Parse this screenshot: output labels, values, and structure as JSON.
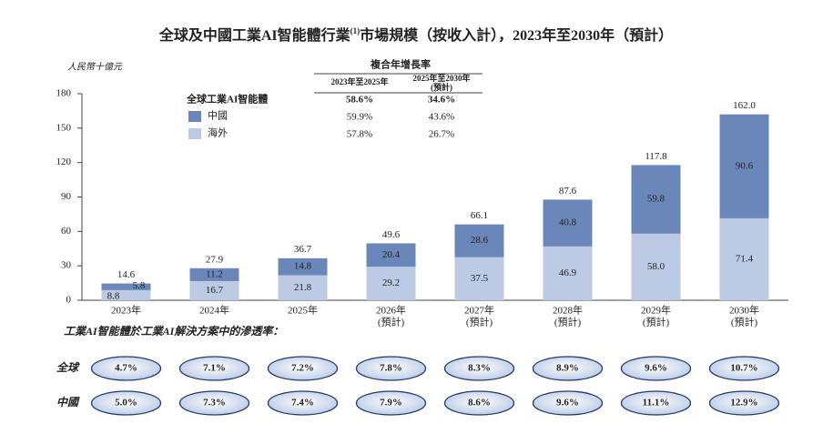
{
  "chart_data": {
    "type": "stacked-bar",
    "title": "全球及中國工業AI智能體行業",
    "title_superscript": "(1)",
    "title_tail": "市場規模（按收入計），2023年至2030年（預計）",
    "y_unit": "人民幣十億元",
    "categories": [
      "2023年",
      "2024年",
      "2025年",
      "2026年",
      "2027年",
      "2028年",
      "2029年",
      "2030年"
    ],
    "category_notes": [
      null,
      null,
      null,
      "(預計)",
      "(預計)",
      "(預計)",
      "(預計)",
      "(預計)"
    ],
    "legend_title": "全球工業AI智能體",
    "series": [
      {
        "name": "海外",
        "color": "#bccbe3",
        "values": [
          8.8,
          16.7,
          21.8,
          29.2,
          37.5,
          46.9,
          58.0,
          71.4
        ],
        "value_labels": [
          "8.8",
          "16.7",
          "21.8",
          "29.2",
          "37.5",
          "46.9",
          "58.0",
          "71.4"
        ]
      },
      {
        "name": "中國",
        "color": "#6b87b9",
        "values": [
          5.8,
          11.2,
          14.8,
          20.4,
          28.6,
          40.8,
          59.8,
          90.6
        ],
        "value_labels": [
          "5.8",
          "11.2",
          "14.8",
          "20.4",
          "28.6",
          "40.8",
          "59.8",
          "90.6"
        ]
      }
    ],
    "totals": [
      14.6,
      27.9,
      36.7,
      49.6,
      66.1,
      87.6,
      117.8,
      162.0
    ],
    "total_labels": [
      "14.6",
      "27.9",
      "36.7",
      "49.6",
      "66.1",
      "87.6",
      "117.8",
      "162.0"
    ],
    "ylim": [
      0,
      180
    ],
    "yticks": [
      0,
      30,
      60,
      90,
      120,
      150,
      180
    ]
  },
  "cagr_table": {
    "title": "複合年增長率",
    "columns": [
      "2023年至2025年",
      "2025年至2030年"
    ],
    "column_note": "(預計)",
    "rows": [
      [
        "58.6%",
        "34.6%"
      ],
      [
        "59.9%",
        "43.6%"
      ],
      [
        "57.8%",
        "26.7%"
      ]
    ]
  },
  "penetration": {
    "title": "工業AI智能體於工業AI解決方案中的滲透率：",
    "rows": [
      {
        "label": "全球",
        "values": [
          "4.7%",
          "7.1%",
          "7.2%",
          "7.8%",
          "8.3%",
          "8.9%",
          "9.6%",
          "10.7%"
        ]
      },
      {
        "label": "中國",
        "values": [
          "5.0%",
          "7.3%",
          "7.4%",
          "7.9%",
          "8.6%",
          "9.6%",
          "11.1%",
          "12.9%"
        ]
      }
    ]
  }
}
